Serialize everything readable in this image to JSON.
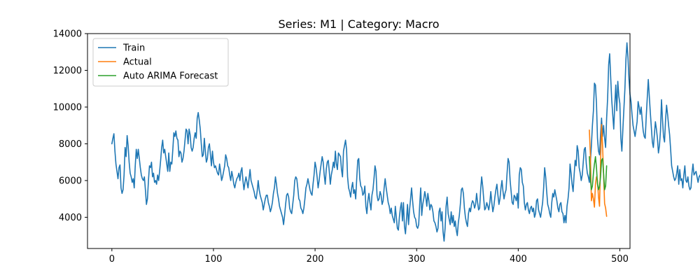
{
  "chart_data": {
    "type": "line",
    "title": "Series: M1 | Category: Macro",
    "xlabel": "",
    "ylabel": "",
    "xlim": [
      -24,
      510
    ],
    "ylim": [
      2300,
      14000
    ],
    "xticks": [
      0,
      100,
      200,
      300,
      400,
      500
    ],
    "yticks": [
      4000,
      6000,
      8000,
      10000,
      12000,
      14000
    ],
    "grid": false,
    "legend_position": "top-left",
    "series": [
      {
        "name": "Train",
        "color": "#1f77b4",
        "start": 0,
        "values": [
          8000,
          8300,
          8550,
          7600,
          6900,
          6500,
          6100,
          6700,
          6850,
          5600,
          5300,
          5500,
          6300,
          7800,
          7300,
          8450,
          7900,
          7000,
          6400,
          6200,
          5900,
          6100,
          5600,
          6800,
          7700,
          7200,
          7700,
          7200,
          6700,
          6300,
          6100,
          6000,
          6200,
          5500,
          4700,
          5000,
          6000,
          6800,
          6700,
          7000,
          6200,
          6400,
          5900,
          6000,
          5800,
          6300,
          6000,
          6500,
          7100,
          7800,
          8200,
          7500,
          7700,
          7300,
          6900,
          6500,
          7500,
          6500,
          7000,
          6900,
          7700,
          8600,
          8400,
          8700,
          8300,
          8200,
          7300,
          7600,
          7500,
          7000,
          7200,
          7600,
          8200,
          8800,
          8700,
          8000,
          8800,
          8500,
          7800,
          7600,
          7800,
          8300,
          8600,
          8300,
          9400,
          9700,
          9300,
          8800,
          8000,
          7300,
          7400,
          8300,
          7600,
          7000,
          7200,
          7800,
          8000,
          7400,
          6800,
          7600,
          7000,
          6700,
          6800,
          6600,
          6400,
          6300,
          6900,
          6500,
          6000,
          6200,
          6500,
          6800,
          7400,
          7200,
          6800,
          6700,
          6300,
          6000,
          6500,
          6200,
          5800,
          5600,
          5900,
          6100,
          6200,
          6400,
          6000,
          6500,
          6700,
          6000,
          5500,
          5900,
          6200,
          5900,
          5600,
          6100,
          6600,
          6000,
          5800,
          5600,
          5400,
          5100,
          5000,
          5400,
          6000,
          5500,
          5200,
          5000,
          4800,
          4400,
          4700,
          5000,
          5200,
          5200,
          4800,
          4600,
          4300,
          4500,
          4800,
          5300,
          5600,
          6200,
          5800,
          5300,
          5000,
          4600,
          4400,
          4200,
          4000,
          3600,
          4100,
          4700,
          5200,
          5300,
          5100,
          4500,
          4300,
          4200,
          4700,
          5200,
          6000,
          6200,
          6100,
          5600,
          5000,
          4900,
          4500,
          4400,
          4200,
          4500,
          5000,
          5600,
          5800,
          6100,
          5800,
          5500,
          5300,
          5200,
          5800,
          6300,
          7000,
          6700,
          6200,
          5600,
          6000,
          6500,
          6900,
          7300,
          7000,
          6300,
          5800,
          6600,
          7000,
          7100,
          6500,
          5800,
          6300,
          6600,
          7000,
          6700,
          7600,
          6900,
          6600,
          7500,
          7400,
          7300,
          6600,
          6200,
          7600,
          7900,
          8200,
          7700,
          6200,
          5600,
          5400,
          5100,
          5600,
          5900,
          5300,
          5500,
          5000,
          6100,
          7100,
          7200,
          6100,
          5700,
          5600,
          5200,
          5300,
          5700,
          4600,
          4200,
          4900,
          5300,
          4800,
          4400,
          5200,
          5500,
          6100,
          6800,
          6500,
          5200,
          4900,
          5000,
          5400,
          5200,
          4700,
          4900,
          5600,
          6100,
          5600,
          5200,
          4800,
          4600,
          4200,
          4500,
          4100,
          3900,
          3700,
          4600,
          4000,
          3400,
          3300,
          4000,
          4500,
          4800,
          3800,
          4800,
          3500,
          3100,
          3900,
          4700,
          3600,
          4400,
          5000,
          5600,
          4900,
          4300,
          4000,
          3900,
          3500,
          3400,
          3600,
          4700,
          5600,
          4100,
          4700,
          5000,
          5400,
          5100,
          4600,
          5300,
          4900,
          4400,
          4700,
          4600,
          4300,
          3800,
          3700,
          3500,
          3200,
          3400,
          4300,
          4500,
          3800,
          4300,
          3200,
          2700,
          3400,
          4600,
          5100,
          4200,
          3900,
          3600,
          4300,
          3700,
          4100,
          3500,
          3800,
          3300,
          3000,
          3700,
          4100,
          4700,
          5500,
          5600,
          5300,
          4500,
          4000,
          3700,
          3500,
          4200,
          4500,
          4300,
          4700,
          4900,
          4800,
          4500,
          4700,
          5300,
          4800,
          4400,
          4500,
          5500,
          6200,
          5700,
          5000,
          4400,
          4500,
          4800,
          4600,
          4400,
          4800,
          5400,
          4800,
          4300,
          4600,
          5100,
          5500,
          5800,
          5200,
          4700,
          5000,
          5600,
          6000,
          5400,
          5000,
          5300,
          5500,
          6400,
          7200,
          7000,
          6000,
          5400,
          4800,
          4700,
          5200,
          5100,
          4900,
          5300,
          4500,
          6300,
          6700,
          6600,
          5900,
          5700,
          4800,
          4400,
          4700,
          4800,
          4400,
          4200,
          4500,
          4600,
          4300,
          4500,
          4000,
          4200,
          4900,
          5000,
          4400,
          4200,
          4000,
          4400,
          4800,
          5600,
          6700,
          6200,
          5400,
          4700,
          4500,
          4200,
          4000,
          4800,
          5300,
          5100,
          5500,
          5200,
          4900,
          4500,
          4300,
          4700,
          4800,
          4300,
          4200,
          3700,
          4100,
          3700,
          4600,
          5000,
          5600,
          6900,
          6400,
          5800,
          5400,
          6300,
          7100,
          6800,
          7900,
          7600,
          6700,
          6400,
          6000,
          6300,
          7000,
          7700,
          7800,
          6900,
          6400,
          6200,
          5900,
          7000,
          7900,
          9000,
          9800,
          11300,
          11200,
          10200,
          8300,
          7600,
          7400,
          8500,
          9400,
          8400,
          9000,
          8300,
          7800,
          9400,
          10500,
          12300,
          12900,
          11600,
          10400,
          9600,
          8800,
          10100,
          11200,
          9800,
          11400,
          10600,
          10200,
          8300,
          7600,
          8800,
          9900,
          11000,
          12600,
          13500,
          12700,
          11500,
          10700,
          10300,
          9600,
          9000,
          8700,
          8400,
          8800,
          9200,
          10300,
          10000,
          9600,
          10000,
          9300,
          8700,
          8400,
          8300,
          9500,
          10500,
          11500,
          10600,
          9700,
          8900,
          8100,
          7800,
          8500,
          9200,
          8800,
          8300,
          7500,
          7900,
          8700,
          10400,
          9300,
          8400,
          8100,
          9300,
          10100,
          9600,
          9000,
          8500,
          7700,
          6800,
          6500,
          6200,
          6000,
          6100,
          6400,
          6800,
          5800,
          6600,
          6000,
          6100,
          5600,
          6300,
          6800,
          6000,
          5900,
          6200,
          5700,
          5500,
          5600,
          6400,
          6900,
          6300,
          6400,
          6500,
          6200,
          5900,
          6200,
          6300,
          6000,
          5800
        ]
      },
      {
        "name": "Actual",
        "color": "#ff7f0e",
        "start": 470,
        "values": [
          8750,
          7400,
          4900,
          5300,
          5000,
          4550,
          5800,
          6200,
          6000,
          5100,
          4600,
          7000,
          9050,
          7900,
          6300,
          4750,
          4500,
          4050
        ]
      },
      {
        "name": "Auto ARIMA Forecast",
        "color": "#2ca02c",
        "start": 470,
        "values": [
          7300,
          6100,
          5500,
          5700,
          6400,
          6900,
          7300,
          6700,
          5800,
          5500,
          5700,
          6200,
          7100,
          7200,
          6400,
          5500,
          5700,
          6800
        ]
      }
    ]
  }
}
